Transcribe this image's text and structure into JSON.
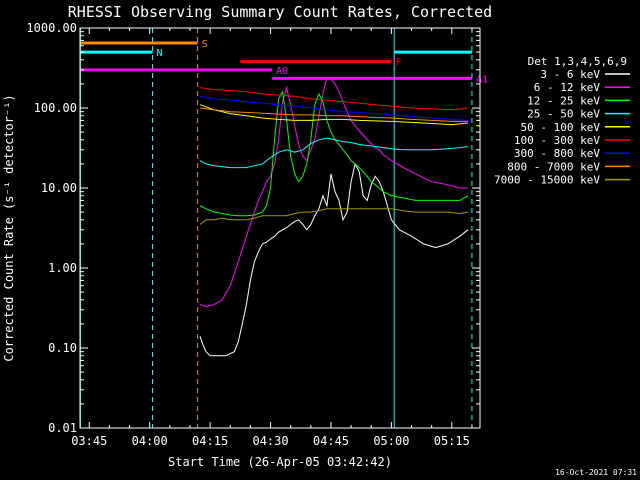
{
  "chart_data": {
    "type": "line",
    "title": "RHESSI Observing Summary Count Rates, Corrected",
    "xlabel": "Start Time (26-Apr-05 03:42:42)",
    "ylabel": "Corrected Count Rate (s⁻¹ detector⁻¹)",
    "timestamp": "16-Oct-2021 07:31",
    "x_unit": "minutes of day (UT)",
    "xlim": [
      222.7,
      322.0
    ],
    "ylim": [
      0.01,
      1000
    ],
    "yscale": "log",
    "x_ticks": [
      {
        "value": 225,
        "label": "03:45"
      },
      {
        "value": 240,
        "label": "04:00"
      },
      {
        "value": 255,
        "label": "04:15"
      },
      {
        "value": 270,
        "label": "04:30"
      },
      {
        "value": 285,
        "label": "04:45"
      },
      {
        "value": 300,
        "label": "05:00"
      },
      {
        "value": 315,
        "label": "05:15"
      }
    ],
    "y_ticks": [
      {
        "value": 0.01,
        "label": "0.01"
      },
      {
        "value": 0.1,
        "label": "0.10"
      },
      {
        "value": 1,
        "label": "1.00"
      },
      {
        "value": 10,
        "label": "10.00"
      },
      {
        "value": 100,
        "label": "100.00"
      },
      {
        "value": 1000,
        "label": "1000.00"
      }
    ],
    "legend": {
      "title": "Det 1,3,4,5,6,9",
      "placement": "right"
    },
    "series": [
      {
        "name": "3 - 6 keV",
        "color": "#ffffff",
        "x": [
          252.5,
          253.2,
          254,
          255,
          256,
          257,
          258,
          259,
          260,
          261,
          262,
          263,
          264,
          265,
          266,
          267,
          268,
          269,
          270,
          271,
          272,
          273,
          274,
          275,
          276,
          277,
          278,
          279,
          280,
          281,
          282,
          283,
          284,
          285,
          286,
          287,
          288,
          289,
          290,
          291,
          292,
          293,
          294,
          295,
          296,
          297,
          298,
          299,
          300,
          302,
          305,
          308,
          311,
          314,
          317,
          319
        ],
        "y": [
          0.14,
          0.11,
          0.09,
          0.08,
          0.08,
          0.08,
          0.08,
          0.08,
          0.085,
          0.09,
          0.12,
          0.2,
          0.35,
          0.7,
          1.2,
          1.6,
          2.0,
          2.1,
          2.3,
          2.5,
          2.8,
          3.0,
          3.2,
          3.5,
          3.8,
          4.0,
          3.5,
          3.0,
          3.5,
          4.5,
          5.5,
          8.0,
          6.0,
          15,
          9,
          7,
          4,
          5,
          12,
          20,
          16,
          8,
          7,
          11,
          14,
          12,
          9,
          6,
          4,
          3,
          2.5,
          2,
          1.8,
          2,
          2.5,
          3
        ]
      },
      {
        "name": "6 - 12 keV",
        "color": "#ff00ff",
        "x": [
          252.5,
          254,
          256,
          258,
          260,
          262,
          264,
          266,
          267,
          268,
          269,
          270,
          271,
          272,
          273,
          274,
          275,
          276,
          277,
          278,
          279,
          280,
          281,
          282,
          283,
          284,
          285,
          286,
          287,
          288,
          289,
          290,
          291,
          292,
          293,
          294,
          295,
          296,
          297,
          298,
          300,
          303,
          306,
          310,
          314,
          317,
          319
        ],
        "y": [
          0.35,
          0.33,
          0.35,
          0.4,
          0.6,
          1.2,
          2.5,
          5,
          7,
          9,
          12,
          14,
          20,
          40,
          120,
          180,
          110,
          60,
          35,
          25,
          22,
          30,
          40,
          80,
          150,
          240,
          230,
          200,
          160,
          120,
          90,
          70,
          60,
          52,
          46,
          40,
          36,
          32,
          30,
          26,
          22,
          18,
          15,
          12,
          11,
          10,
          10
        ]
      },
      {
        "name": "12 - 25 keV",
        "color": "#00ff00",
        "x": [
          252.5,
          254,
          256,
          258,
          260,
          262,
          264,
          266,
          268,
          269,
          270,
          271,
          272,
          273,
          274,
          275,
          276,
          277,
          278,
          279,
          280,
          281,
          282,
          283,
          284,
          285,
          286,
          287,
          288,
          289,
          290,
          291,
          292,
          293,
          294,
          295,
          296,
          297,
          298,
          300,
          303,
          306,
          310,
          314,
          317,
          319
        ],
        "y": [
          6,
          5.5,
          5,
          4.8,
          4.6,
          4.5,
          4.5,
          4.6,
          5,
          6,
          10,
          40,
          130,
          160,
          70,
          25,
          15,
          12,
          14,
          20,
          40,
          110,
          150,
          120,
          70,
          50,
          40,
          35,
          30,
          26,
          22,
          20,
          18,
          16,
          14,
          12,
          11,
          10,
          9,
          8,
          7.5,
          7,
          7,
          7,
          7,
          8
        ]
      },
      {
        "name": "25 - 50 keV",
        "color": "#00ffff",
        "x": [
          252.5,
          254,
          256,
          258,
          260,
          262,
          264,
          266,
          268,
          270,
          272,
          274,
          276,
          278,
          280,
          282,
          284,
          286,
          288,
          290,
          292,
          294,
          296,
          298,
          300,
          303,
          306,
          310,
          314,
          317,
          319
        ],
        "y": [
          22,
          20,
          19,
          18.5,
          18,
          18,
          18,
          19,
          20,
          24,
          28,
          30,
          28,
          30,
          36,
          40,
          42,
          40,
          38,
          37,
          35,
          34,
          33,
          32,
          31,
          30,
          30,
          30,
          31,
          32,
          33
        ]
      },
      {
        "name": "50 - 100 keV",
        "color": "#ffff00",
        "x": [
          252.5,
          256,
          260,
          264,
          268,
          272,
          276,
          280,
          284,
          288,
          292,
          296,
          300,
          305,
          310,
          315,
          319
        ],
        "y": [
          110,
          95,
          85,
          80,
          75,
          72,
          70,
          70,
          72,
          72,
          70,
          69,
          68,
          66,
          64,
          62,
          65
        ]
      },
      {
        "name": "100 - 300 keV",
        "color": "#ff0000",
        "x": [
          252.5,
          256,
          260,
          264,
          268,
          272,
          276,
          280,
          284,
          288,
          292,
          296,
          300,
          305,
          310,
          315,
          319
        ],
        "y": [
          180,
          170,
          165,
          160,
          150,
          145,
          140,
          130,
          125,
          120,
          115,
          110,
          105,
          100,
          98,
          95,
          100
        ]
      },
      {
        "name": "300 - 800 keV",
        "color": "#0000ff",
        "x": [
          252.5,
          256,
          260,
          264,
          268,
          272,
          276,
          280,
          284,
          288,
          292,
          296,
          300,
          305,
          310,
          315,
          319
        ],
        "y": [
          140,
          130,
          125,
          120,
          115,
          110,
          105,
          100,
          95,
          90,
          88,
          85,
          82,
          78,
          75,
          72,
          70
        ]
      },
      {
        "name": "800 - 7000 keV",
        "color": "#ff8800",
        "x": [
          252.5,
          256,
          260,
          264,
          268,
          272,
          276,
          280,
          284,
          288,
          292,
          296,
          300,
          305,
          310,
          315,
          319
        ],
        "y": [
          100,
          95,
          90,
          88,
          86,
          84,
          82,
          82,
          80,
          80,
          78,
          76,
          75,
          72,
          70,
          68,
          68
        ]
      },
      {
        "name": "7000 - 15000 keV",
        "color": "#999900",
        "x": [
          252.5,
          254,
          256,
          258,
          260,
          262,
          264,
          266,
          268,
          270,
          272,
          274,
          276,
          278,
          280,
          282,
          284,
          286,
          288,
          290,
          292,
          294,
          296,
          298,
          300,
          303,
          306,
          310,
          314,
          317,
          319
        ],
        "y": [
          3.5,
          4,
          4,
          4.2,
          4,
          4,
          4,
          4.2,
          4.5,
          4.5,
          4.5,
          4.5,
          4.8,
          5,
          5,
          5.2,
          5.5,
          5.5,
          5.5,
          5.5,
          5.5,
          5.5,
          5.5,
          5.5,
          5.5,
          5.2,
          5,
          5,
          5,
          4.8,
          5
        ]
      }
    ],
    "vertical_markers": [
      {
        "x": 222.8,
        "color": "#00ffff",
        "style": "solid"
      },
      {
        "x": 240.7,
        "color": "#00ffff",
        "style": "dashed"
      },
      {
        "x": 251.9,
        "color": "#ff8800",
        "style": "dashed"
      },
      {
        "x": 300.7,
        "color": "#00ffff",
        "style": "solid"
      },
      {
        "x": 320.0,
        "color": "#00ffff",
        "style": "dashed"
      }
    ],
    "flag_bars": [
      {
        "label": "S",
        "color": "#ff8800",
        "x0": 222.8,
        "x1": 251.9,
        "level": 650
      },
      {
        "label": "N",
        "color": "#00ffff",
        "x0": 222.8,
        "x1": 240.7,
        "level": 500
      },
      {
        "label": "N",
        "label_visible": false,
        "color": "#00ffff",
        "x0": 300.7,
        "x1": 320.0,
        "level": 500
      },
      {
        "label": "F",
        "color": "#ff0000",
        "x0": 262.5,
        "x1": 300.0,
        "level": 380
      },
      {
        "label": "A0",
        "color": "#ff00ff",
        "x0": 222.8,
        "x1": 270.4,
        "level": 300
      },
      {
        "label": "A1",
        "color": "#ff00ff",
        "x0": 270.4,
        "x1": 320.0,
        "level": 235
      }
    ]
  }
}
